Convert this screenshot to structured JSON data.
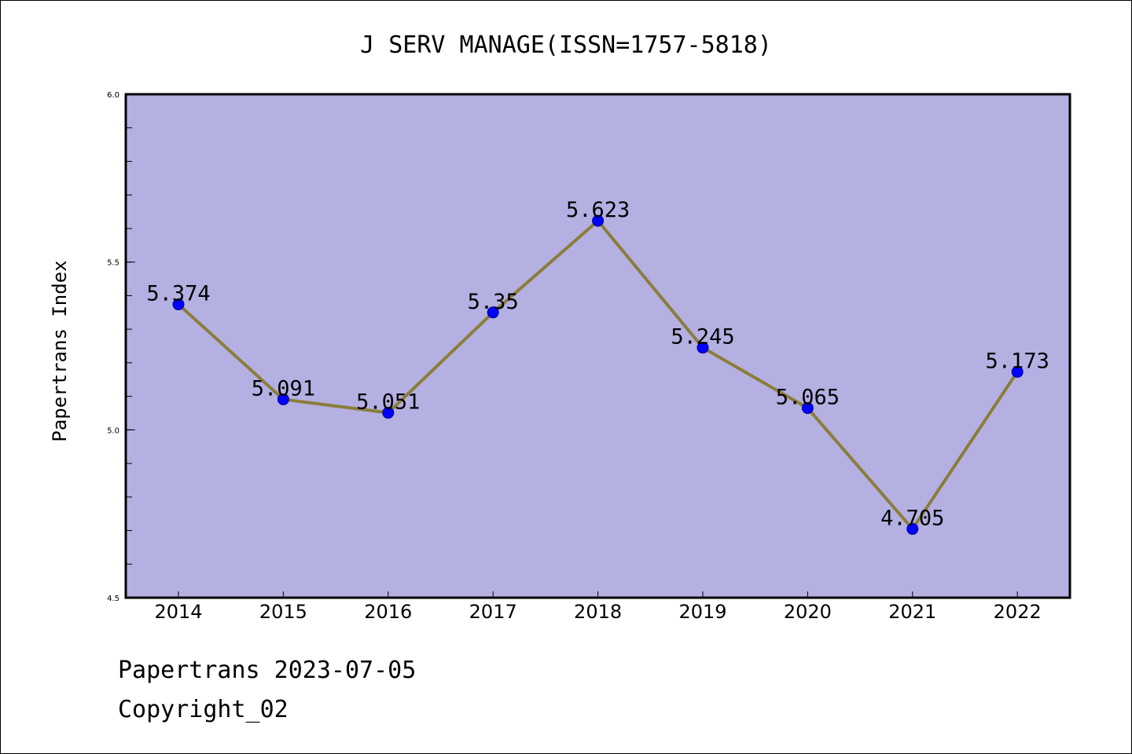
{
  "chart_data": {
    "type": "line",
    "title": "J SERV MANAGE(ISSN=1757-5818)",
    "xlabel": "",
    "ylabel": "Papertrans Index",
    "x": [
      "2014",
      "2015",
      "2016",
      "2017",
      "2018",
      "2019",
      "2020",
      "2021",
      "2022"
    ],
    "series": [
      {
        "values": [
          5.374,
          5.091,
          5.051,
          5.35,
          5.623,
          5.245,
          5.065,
          4.705,
          5.173
        ],
        "labels": [
          "5.374",
          "5.091",
          "5.051",
          "5.35",
          "5.623",
          "5.245",
          "5.065",
          "4.705",
          "5.173"
        ]
      }
    ],
    "ylim": [
      4.5,
      6.0
    ],
    "yticks": [
      "4.5",
      "5.0",
      "5.5",
      "6.0"
    ],
    "ytick_values": [
      4.5,
      5.0,
      5.5,
      6.0
    ],
    "y_minor_step": 0.1,
    "grid": false,
    "legend": "none",
    "colors": {
      "plot_background": "#b4b0e2",
      "line": "#8b7d3a",
      "marker": "#0000ff",
      "marker_edge": "#00008b"
    }
  },
  "footer": {
    "date": "Papertrans 2023-07-05",
    "copyright": "Copyright_02"
  }
}
